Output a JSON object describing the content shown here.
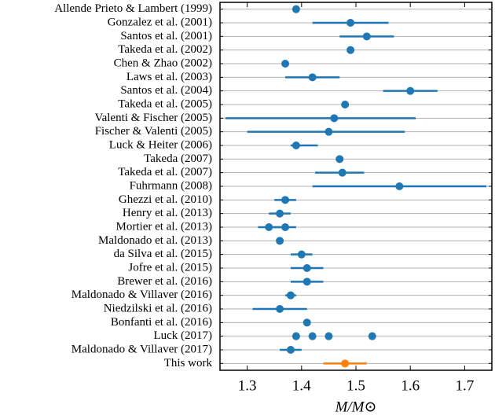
{
  "chart_data": {
    "type": "errorbar",
    "xlabel": "M/M⊙",
    "xlim": [
      1.25,
      1.75
    ],
    "xticks": [
      1.3,
      1.4,
      1.5,
      1.6,
      1.7
    ],
    "color": "#1f77b4",
    "grid": true,
    "categories": [
      "Allende Prieto & Lambert (1999)",
      "Gonzalez et al. (2001)",
      "Santos et al. (2001)",
      "Takeda et al. (2002)",
      "Chen & Zhao (2002)",
      "Laws et al. (2003)",
      "Santos et al. (2004)",
      "Takeda et al. (2005)",
      "Valenti & Fischer (2005)",
      "Fischer & Valenti (2005)",
      "Luck & Heiter (2006)",
      "Takeda (2007)",
      "Takeda et al. (2007)",
      "Fuhrmann (2008)",
      "Ghezzi et al. (2010)",
      "Henry et al. (2013)",
      "Mortier et al. (2013)",
      "Maldonado et al. (2013)",
      "da Silva et al. (2015)",
      "Jofre et al. (2015)",
      "Brewer et al. (2016)",
      "Maldonado & Villaver (2016)",
      "Niedzilski et al. (2016)",
      "Bonfanti et al. (2016)",
      "Luck (2017)",
      "Maldonado & Villaver (2017)",
      "This work"
    ],
    "estimates": [
      [
        {
          "value": 1.39
        }
      ],
      [
        {
          "value": 1.49,
          "low": 1.42,
          "high": 1.56
        }
      ],
      [
        {
          "value": 1.52,
          "low": 1.47,
          "high": 1.57
        }
      ],
      [
        {
          "value": 1.49
        }
      ],
      [
        {
          "value": 1.37
        }
      ],
      [
        {
          "value": 1.42,
          "low": 1.37,
          "high": 1.47
        }
      ],
      [
        {
          "value": 1.6,
          "low": 1.55,
          "high": 1.65
        }
      ],
      [
        {
          "value": 1.48
        }
      ],
      [
        {
          "value": 1.46,
          "low": 1.26,
          "high": 1.61
        }
      ],
      [
        {
          "value": 1.45,
          "low": 1.3,
          "high": 1.59
        }
      ],
      [
        {
          "value": 1.39,
          "low": 1.38,
          "high": 1.43
        }
      ],
      [
        {
          "value": 1.47
        }
      ],
      [
        {
          "value": 1.475,
          "low": 1.425,
          "high": 1.515
        }
      ],
      [
        {
          "value": 1.58,
          "low": 1.42,
          "high": 1.74
        }
      ],
      [
        {
          "value": 1.37,
          "low": 1.35,
          "high": 1.39
        }
      ],
      [
        {
          "value": 1.36,
          "low": 1.34,
          "high": 1.38
        }
      ],
      [
        {
          "value": 1.34,
          "low": 1.32,
          "high": 1.36
        },
        {
          "value": 1.37,
          "low": 1.35,
          "high": 1.39
        }
      ],
      [
        {
          "value": 1.36
        }
      ],
      [
        {
          "value": 1.4,
          "low": 1.38,
          "high": 1.42
        }
      ],
      [
        {
          "value": 1.41,
          "low": 1.38,
          "high": 1.44
        }
      ],
      [
        {
          "value": 1.41,
          "low": 1.38,
          "high": 1.44
        }
      ],
      [
        {
          "value": 1.38,
          "low": 1.37,
          "high": 1.39
        }
      ],
      [
        {
          "value": 1.36,
          "low": 1.31,
          "high": 1.41
        }
      ],
      [
        {
          "value": 1.41
        }
      ],
      [
        {
          "value": 1.39
        },
        {
          "value": 1.42
        },
        {
          "value": 1.45
        },
        {
          "value": 1.53
        }
      ],
      [
        {
          "value": 1.38,
          "low": 1.36,
          "high": 1.4
        }
      ],
      [
        {
          "value": 1.48,
          "low": 1.44,
          "high": 1.52,
          "color": "#ff7f0e"
        }
      ]
    ]
  }
}
